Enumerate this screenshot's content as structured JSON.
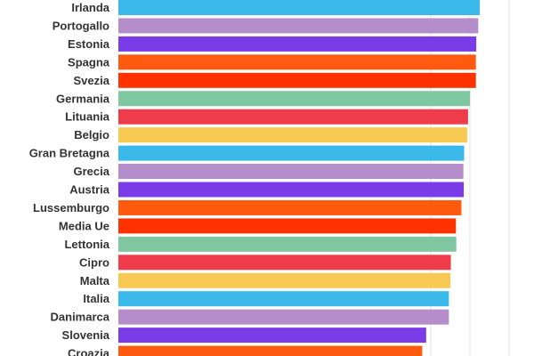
{
  "chart_data": {
    "type": "bar",
    "orientation": "horizontal",
    "title": "",
    "xlabel": "",
    "ylabel": "",
    "grid": true,
    "categories": [
      "Irlanda",
      "Portogallo",
      "Estonia",
      "Spagna",
      "Svezia",
      "Germania",
      "Lituania",
      "Belgio",
      "Gran Bretagna",
      "Grecia",
      "Austria",
      "Lussemburgo",
      "Media Ue",
      "Lettonia",
      "Cipro",
      "Malta",
      "Italia",
      "Danimarca",
      "Slovenia",
      "Croazia"
    ],
    "values": [
      92.3,
      91.9,
      91.4,
      91.3,
      91.3,
      89.8,
      89.3,
      89.1,
      88.3,
      88.1,
      88.2,
      87.6,
      86.2,
      86.3,
      84.9,
      84.8,
      84.4,
      84.4,
      78.6,
      77.6
    ],
    "xlim": [
      0,
      100
    ],
    "colors": [
      "#3bb8ea",
      "#b58dcb",
      "#7a3ce6",
      "#ff5a0f",
      "#ff3300",
      "#7ec7a1",
      "#ef3c4a",
      "#f8c952",
      "#3bb8ea",
      "#b58dcb",
      "#7a3ce6",
      "#ff5a0f",
      "#ff3300",
      "#7ec7a1",
      "#ef3c4a",
      "#f8c952",
      "#3bb8ea",
      "#b58dcb",
      "#7a3ce6",
      "#ff5a0f"
    ]
  }
}
